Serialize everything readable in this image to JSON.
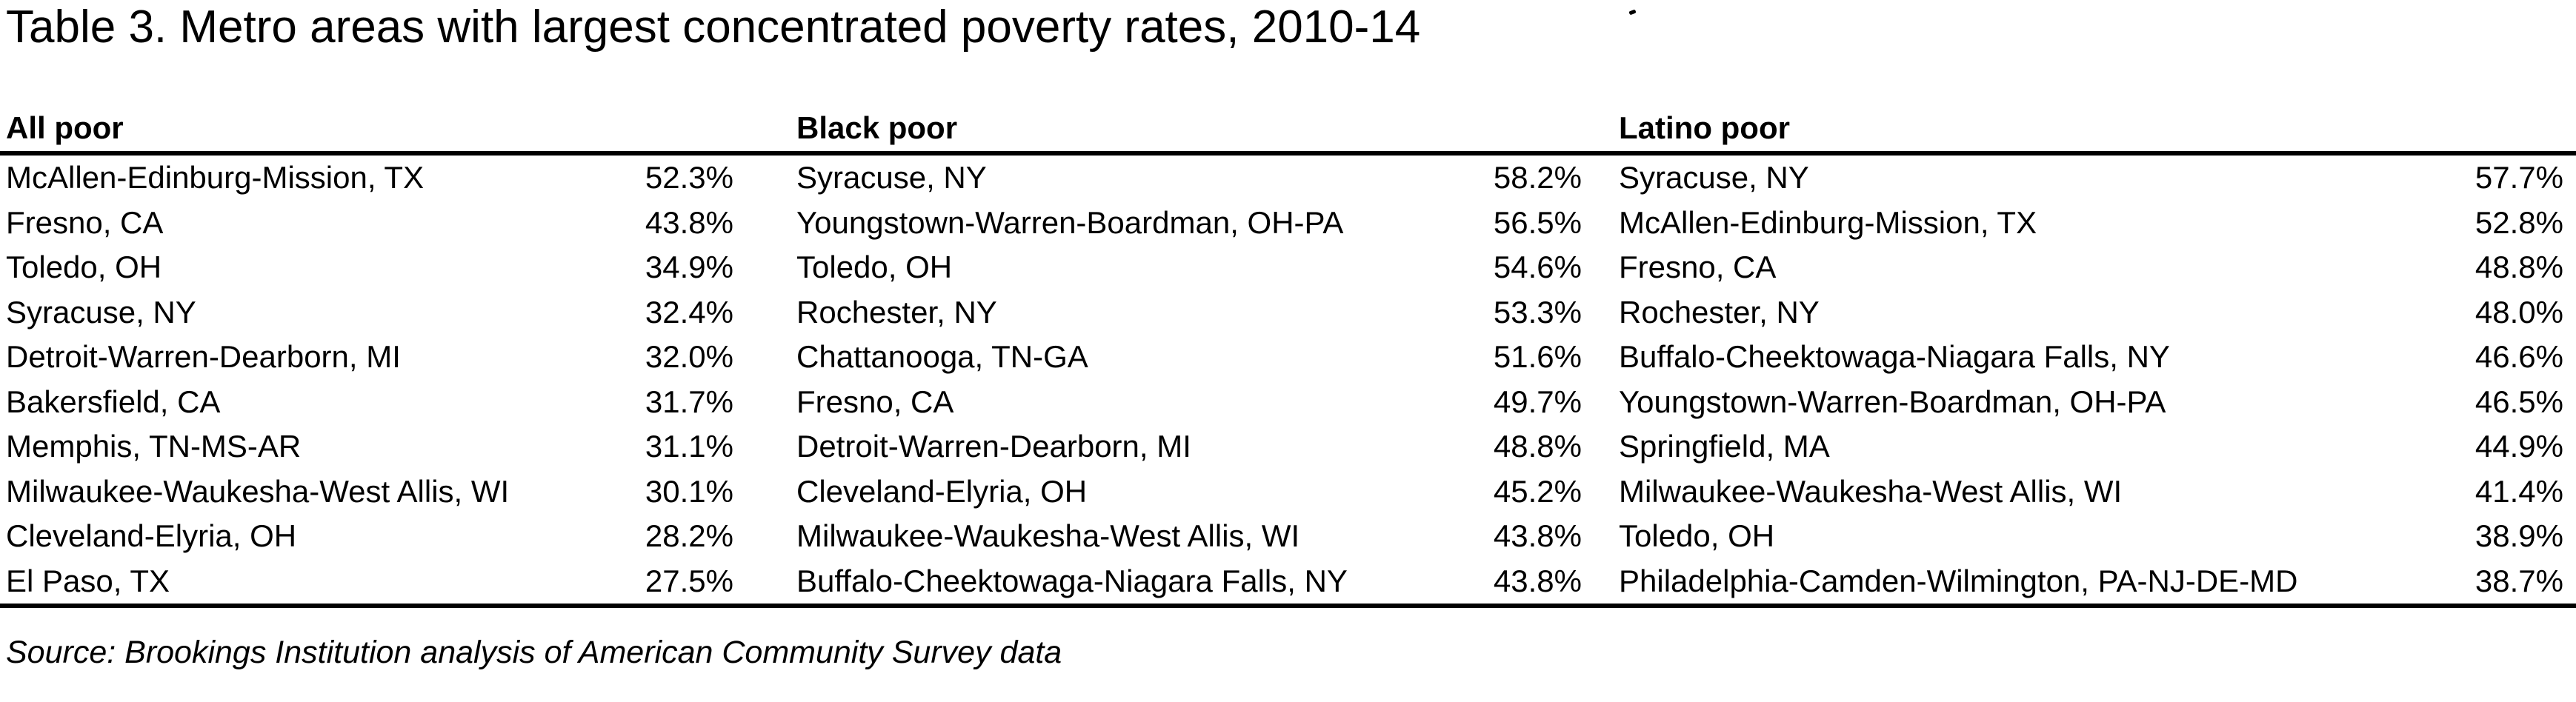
{
  "title": "Table 3. Metro areas with largest concentrated poverty rates, 2010-14",
  "source_note": "Source: Brookings Institution analysis of American Community Survey data",
  "colors": {
    "text": "#000000",
    "background": "#ffffff",
    "rule": "#000000"
  },
  "table": {
    "columns": [
      {
        "header": "All poor",
        "rows": [
          {
            "metro": "McAllen-Edinburg-Mission, TX",
            "value": "52.3%"
          },
          {
            "metro": "Fresno, CA",
            "value": "43.8%"
          },
          {
            "metro": "Toledo, OH",
            "value": "34.9%"
          },
          {
            "metro": "Syracuse, NY",
            "value": "32.4%"
          },
          {
            "metro": "Detroit-Warren-Dearborn, MI",
            "value": "32.0%"
          },
          {
            "metro": "Bakersfield, CA",
            "value": "31.7%"
          },
          {
            "metro": "Memphis, TN-MS-AR",
            "value": "31.1%"
          },
          {
            "metro": "Milwaukee-Waukesha-West Allis, WI",
            "value": "30.1%"
          },
          {
            "metro": "Cleveland-Elyria, OH",
            "value": "28.2%"
          },
          {
            "metro": "El Paso, TX",
            "value": "27.5%"
          }
        ]
      },
      {
        "header": "Black poor",
        "rows": [
          {
            "metro": "Syracuse, NY",
            "value": "58.2%"
          },
          {
            "metro": "Youngstown-Warren-Boardman, OH-PA",
            "value": "56.5%"
          },
          {
            "metro": "Toledo, OH",
            "value": "54.6%"
          },
          {
            "metro": "Rochester, NY",
            "value": "53.3%"
          },
          {
            "metro": "Chattanooga, TN-GA",
            "value": "51.6%"
          },
          {
            "metro": "Fresno, CA",
            "value": "49.7%"
          },
          {
            "metro": "Detroit-Warren-Dearborn, MI",
            "value": "48.8%"
          },
          {
            "metro": "Cleveland-Elyria, OH",
            "value": "45.2%"
          },
          {
            "metro": "Milwaukee-Waukesha-West Allis, WI",
            "value": "43.8%"
          },
          {
            "metro": "Buffalo-Cheektowaga-Niagara Falls, NY",
            "value": "43.8%"
          }
        ]
      },
      {
        "header": "Latino poor",
        "rows": [
          {
            "metro": "Syracuse, NY",
            "value": "57.7%"
          },
          {
            "metro": "McAllen-Edinburg-Mission, TX",
            "value": "52.8%"
          },
          {
            "metro": "Fresno, CA",
            "value": "48.8%"
          },
          {
            "metro": "Rochester, NY",
            "value": "48.0%"
          },
          {
            "metro": "Buffalo-Cheektowaga-Niagara Falls, NY",
            "value": "46.6%"
          },
          {
            "metro": "Youngstown-Warren-Boardman, OH-PA",
            "value": "46.5%"
          },
          {
            "metro": "Springfield, MA",
            "value": "44.9%"
          },
          {
            "metro": "Milwaukee-Waukesha-West Allis, WI",
            "value": "41.4%"
          },
          {
            "metro": "Toledo, OH",
            "value": "38.9%"
          },
          {
            "metro": "Philadelphia-Camden-Wilmington, PA-NJ-DE-MD",
            "value": "38.7%"
          }
        ]
      }
    ]
  }
}
